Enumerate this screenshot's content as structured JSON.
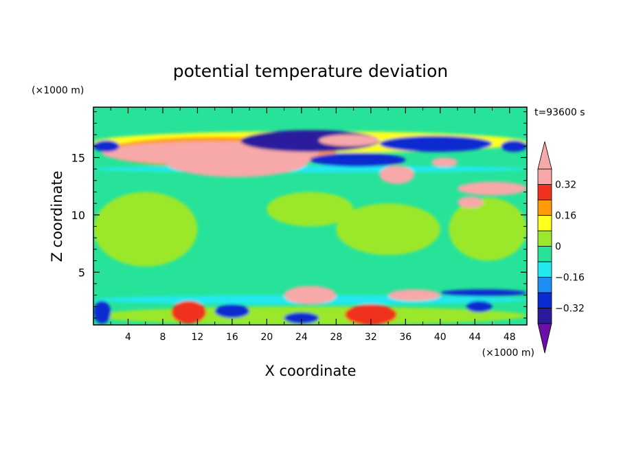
{
  "chart_data": {
    "type": "heatmap",
    "title": "potential temperature deviation",
    "xlabel": "X coordinate",
    "ylabel": "Z coordinate",
    "x_unit": "(×1000 m)",
    "y_unit": "(×1000 m)",
    "time_label": "t=93600 s",
    "xlim": [
      0,
      50
    ],
    "ylim": [
      0.4,
      19.4
    ],
    "x_ticks": [
      4,
      8,
      12,
      16,
      20,
      24,
      28,
      32,
      36,
      40,
      44,
      48
    ],
    "x_tick_labels": [
      "4",
      "8",
      "12",
      "16",
      "20",
      "24",
      "28",
      "32",
      "36",
      "40",
      "44",
      "48"
    ],
    "y_ticks": [
      5,
      10,
      15
    ],
    "y_tick_labels": [
      "5",
      "10",
      "15"
    ],
    "colorbar": {
      "levels": [
        -0.4,
        -0.32,
        -0.24,
        -0.16,
        -0.08,
        0,
        0.08,
        0.16,
        0.24,
        0.32,
        0.4
      ],
      "level_labels": [
        {
          "value": 0.32,
          "text": "0.32"
        },
        {
          "value": 0.16,
          "text": "0.16"
        },
        {
          "value": 0,
          "text": "0"
        },
        {
          "value": -0.16,
          "text": "−0.16"
        },
        {
          "value": -0.32,
          "text": "−0.32"
        }
      ],
      "band_colors": [
        "#6a0fa8",
        "#2a1a9c",
        "#0a2bd0",
        "#1f8ef2",
        "#22e8f0",
        "#27e39a",
        "#9be82a",
        "#ffff1e",
        "#ff9b0a",
        "#f0321e",
        "#f7a8a8"
      ],
      "over_color": "#f7a8a8",
      "under_color": "#6a0fa8"
    },
    "background_color": "#27e39a",
    "features": [
      {
        "x": [
          0,
          50
        ],
        "z": [
          13.7,
          14.3
        ],
        "value": -0.12
      },
      {
        "x": [
          0,
          50
        ],
        "z": [
          2.2,
          3.0
        ],
        "value": -0.12
      },
      {
        "x": [
          0,
          50
        ],
        "z": [
          15.4,
          17.3
        ],
        "value": 0.1
      },
      {
        "x": [
          0,
          50
        ],
        "z": [
          0.4,
          2.0
        ],
        "value": 0.05
      },
      {
        "x": [
          0,
          12
        ],
        "z": [
          5.5,
          12.0
        ],
        "value": 0.05
      },
      {
        "x": [
          20,
          30
        ],
        "z": [
          9.0,
          12.0
        ],
        "value": 0.05
      },
      {
        "x": [
          28,
          40
        ],
        "z": [
          6.5,
          11.0
        ],
        "value": 0.05
      },
      {
        "x": [
          41,
          50
        ],
        "z": [
          6.0,
          11.5
        ],
        "value": 0.05
      },
      {
        "x": [
          1,
          28
        ],
        "z": [
          14.2,
          16.8
        ],
        "value": 0.2
      },
      {
        "x": [
          1,
          26
        ],
        "z": [
          14.4,
          16.4
        ],
        "value": 0.35
      },
      {
        "x": [
          8,
          25
        ],
        "z": [
          13.3,
          16.4
        ],
        "value": 0.42
      },
      {
        "x": [
          17,
          33
        ],
        "z": [
          15.5,
          17.4
        ],
        "value": -0.36
      },
      {
        "x": [
          33,
          46
        ],
        "z": [
          15.5,
          16.9
        ],
        "value": -0.3
      },
      {
        "x": [
          25,
          36
        ],
        "z": [
          14.2,
          15.4
        ],
        "value": -0.3
      },
      {
        "x": [
          26,
          33
        ],
        "z": [
          16.0,
          17.0
        ],
        "value": 0.42
      },
      {
        "x": [
          33,
          37
        ],
        "z": [
          12.7,
          14.3
        ],
        "value": 0.42
      },
      {
        "x": [
          42,
          50
        ],
        "z": [
          11.7,
          12.9
        ],
        "value": 0.35
      },
      {
        "x": [
          42,
          45
        ],
        "z": [
          10.6,
          11.6
        ],
        "value": 0.35
      },
      {
        "x": [
          0,
          3
        ],
        "z": [
          15.5,
          16.5
        ],
        "value": -0.3
      },
      {
        "x": [
          47,
          50
        ],
        "z": [
          15.5,
          16.5
        ],
        "value": -0.3
      },
      {
        "x": [
          39,
          42
        ],
        "z": [
          14.2,
          15.0
        ],
        "value": 0.35
      },
      {
        "x": [
          22,
          28
        ],
        "z": [
          2.2,
          3.8
        ],
        "value": 0.4
      },
      {
        "x": [
          34,
          40
        ],
        "z": [
          2.5,
          3.5
        ],
        "value": 0.4
      },
      {
        "x": [
          9,
          13
        ],
        "z": [
          0.5,
          2.5
        ],
        "value": 0.3
      },
      {
        "x": [
          29,
          35
        ],
        "z": [
          0.4,
          2.2
        ],
        "value": 0.3
      },
      {
        "x": [
          40,
          50
        ],
        "z": [
          2.9,
          3.5
        ],
        "value": -0.3
      },
      {
        "x": [
          0,
          2
        ],
        "z": [
          0.5,
          2.5
        ],
        "value": -0.3
      },
      {
        "x": [
          14,
          18
        ],
        "z": [
          1.0,
          2.2
        ],
        "value": -0.3
      },
      {
        "x": [
          22,
          26
        ],
        "z": [
          0.5,
          1.5
        ],
        "value": -0.3
      },
      {
        "x": [
          43,
          46
        ],
        "z": [
          1.5,
          2.5
        ],
        "value": -0.3
      }
    ]
  }
}
